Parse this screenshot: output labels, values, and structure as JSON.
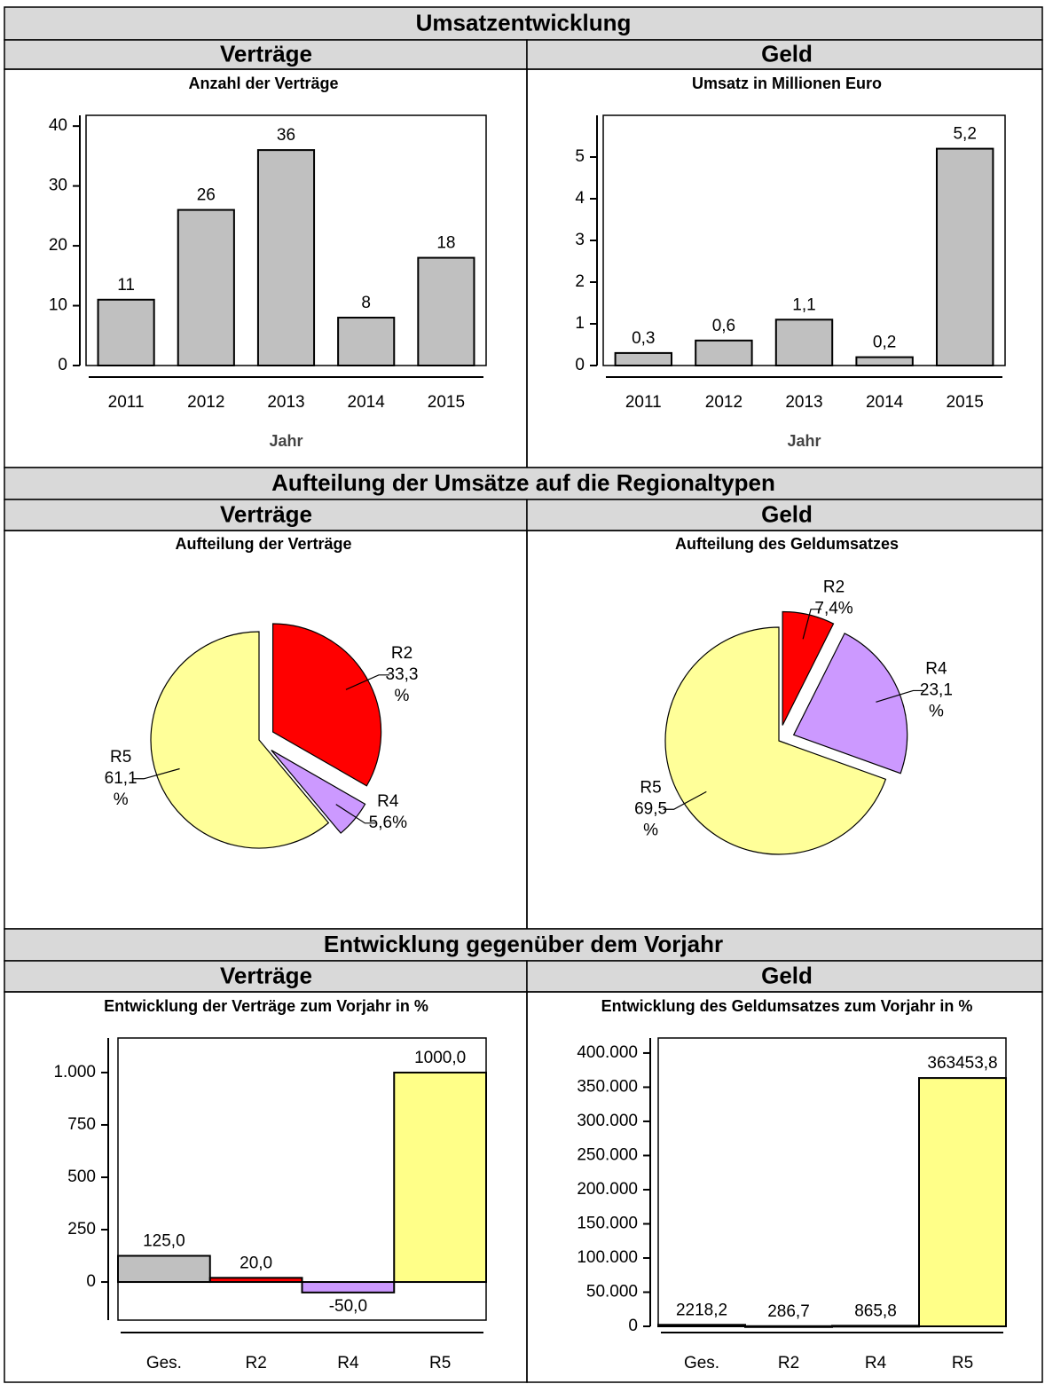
{
  "sections": [
    {
      "title": "Umsatzentwicklung",
      "columns": [
        "Verträge",
        "Geld"
      ]
    },
    {
      "title": "Aufteilung der Umsätze auf die Regionaltypen",
      "columns": [
        "Verträge",
        "Geld"
      ]
    },
    {
      "title": "Entwicklung gegenüber dem Vorjahr",
      "columns": [
        "Verträge",
        "Geld"
      ]
    }
  ],
  "chart_data": [
    {
      "type": "bar",
      "title": "Anzahl der Verträge",
      "x_label": "Jahr",
      "categories": [
        "2011",
        "2012",
        "2013",
        "2014",
        "2015"
      ],
      "values": [
        11,
        26,
        36,
        8,
        18
      ],
      "color": "#c0c0c0",
      "ylim": [
        0,
        41.8
      ],
      "yticks": [
        0,
        10,
        20,
        30,
        40
      ]
    },
    {
      "type": "bar",
      "title": "Umsatz in Millionen Euro",
      "x_label": "Jahr",
      "categories": [
        "2011",
        "2012",
        "2013",
        "2014",
        "2015"
      ],
      "values": [
        0.3,
        0.6,
        1.1,
        0.2,
        5.2
      ],
      "value_labels": [
        "0,3",
        "0,6",
        "1,1",
        "0,2",
        "5,2"
      ],
      "color": "#c0c0c0",
      "ylim": [
        0,
        6
      ],
      "yticks": [
        0,
        1,
        2,
        3,
        4,
        5
      ]
    },
    {
      "type": "pie",
      "title": "Aufteilung der Verträge",
      "categories": [
        "R2",
        "R4",
        "R5"
      ],
      "values": [
        33.3,
        5.6,
        61.1
      ],
      "value_labels": [
        "33,3 %",
        "5,6%",
        "61,1 %"
      ],
      "colors": [
        "#ff0000",
        "#cc99ff",
        "#ffff99"
      ]
    },
    {
      "type": "pie",
      "title": "Aufteilung des Geldumsatzes",
      "categories": [
        "R2",
        "R4",
        "R5"
      ],
      "values": [
        7.4,
        23.1,
        69.5
      ],
      "value_labels": [
        "7,4%",
        "23,1 %",
        "69,5 %"
      ],
      "colors": [
        "#ff0000",
        "#cc99ff",
        "#ffff99"
      ]
    },
    {
      "type": "bar",
      "title": "Entwicklung der Verträge zum Vorjahr in %",
      "categories": [
        "Ges.",
        "R2",
        "R4",
        "R5"
      ],
      "values": [
        125.0,
        20.0,
        -50.0,
        1000.0
      ],
      "value_labels": [
        "125,0",
        "20,0",
        "-50,0",
        "1000,0"
      ],
      "colors": [
        "#c0c0c0",
        "#ff0000",
        "#cc99ff",
        "#ffff88"
      ],
      "ylim": [
        -182,
        1165
      ],
      "yticks": [
        0,
        250,
        500,
        750,
        {
          "value": 1000,
          "label": "1.000"
        }
      ]
    },
    {
      "type": "bar",
      "title": "Entwicklung des Geldumsatzes zum Vorjahr in %",
      "categories": [
        "Ges.",
        "R2",
        "R4",
        "R5"
      ],
      "values": [
        2218.2,
        286.7,
        865.8,
        363453.8
      ],
      "value_labels": [
        "2218,2",
        "286,7",
        "865,8",
        "363453,8"
      ],
      "colors": [
        "#c0c0c0",
        "#ff0000",
        "#cc99ff",
        "#ffff88"
      ],
      "ylim": [
        0,
        422000
      ],
      "yticks": [
        0,
        {
          "value": 50000,
          "label": "50.000"
        },
        {
          "value": 100000,
          "label": "100.000"
        },
        {
          "value": 150000,
          "label": "150.000"
        },
        {
          "value": 200000,
          "label": "200.000"
        },
        {
          "value": 250000,
          "label": "250.000"
        },
        {
          "value": 300000,
          "label": "300.000"
        },
        {
          "value": 350000,
          "label": "350.000"
        },
        {
          "value": 400000,
          "label": "400.000"
        }
      ]
    }
  ]
}
